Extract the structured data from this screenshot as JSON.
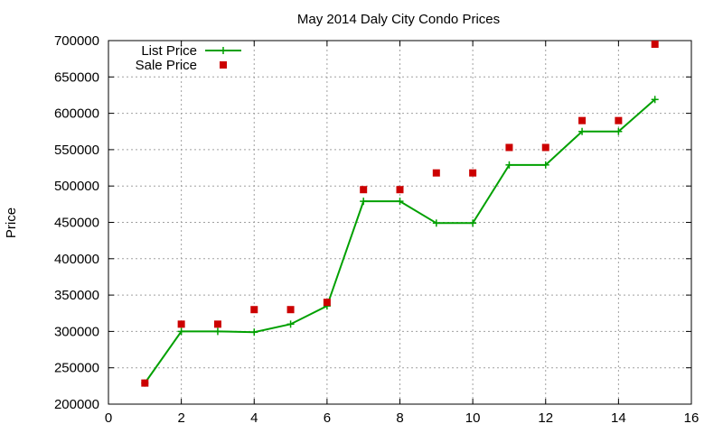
{
  "chart_data": {
    "type": "line",
    "title": "May 2014 Daly City Condo Prices",
    "xlabel": "",
    "ylabel": "Price",
    "xlim": [
      0,
      16
    ],
    "ylim": [
      200000,
      700000
    ],
    "x_ticks": [
      0,
      2,
      4,
      6,
      8,
      10,
      12,
      14,
      16
    ],
    "y_ticks": [
      200000,
      250000,
      300000,
      350000,
      400000,
      450000,
      500000,
      550000,
      600000,
      650000,
      700000
    ],
    "grid": true,
    "legend_position": "top-left",
    "series": [
      {
        "name": "List Price",
        "style": "line-points",
        "marker": "plus",
        "color": "#00a000",
        "x": [
          1,
          2,
          3,
          4,
          5,
          6,
          7,
          8,
          9,
          10,
          11,
          12,
          13,
          14,
          15
        ],
        "values": [
          229000,
          300000,
          300000,
          299000,
          310000,
          335000,
          479000,
          479000,
          449000,
          449000,
          529000,
          529000,
          575000,
          575000,
          619000
        ]
      },
      {
        "name": "Sale Price",
        "style": "points",
        "marker": "square",
        "color": "#cc0000",
        "x": [
          1,
          2,
          3,
          4,
          5,
          6,
          7,
          8,
          9,
          10,
          11,
          12,
          13,
          14,
          15
        ],
        "values": [
          229000,
          310000,
          310000,
          330000,
          330000,
          340000,
          495000,
          495000,
          518000,
          518000,
          553000,
          553000,
          590000,
          590000,
          695000
        ]
      }
    ]
  }
}
